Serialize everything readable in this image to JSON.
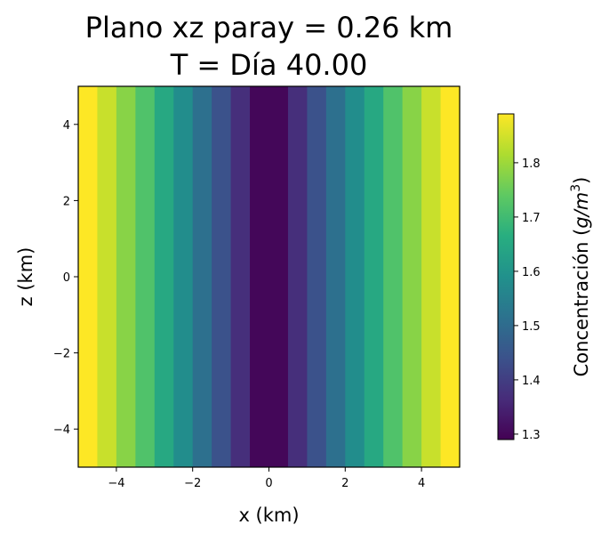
{
  "chart_data": {
    "type": "heatmap",
    "title_lines": [
      "Plano xz paray = 0.26 km",
      "T = Día 40.00"
    ],
    "xlabel": "x (km)",
    "ylabel": "z (km)",
    "xlim": [
      -5,
      5
    ],
    "ylim": [
      -5,
      5
    ],
    "xticks": [
      -4,
      -2,
      0,
      2,
      4
    ],
    "yticks": [
      -4,
      -2,
      0,
      2,
      4
    ],
    "xtick_labels": [
      "−4",
      "−2",
      "0",
      "2",
      "4"
    ],
    "ytick_labels": [
      "−4",
      "−2",
      "0",
      "2",
      "4"
    ],
    "x_bin_edges": [
      -5.0,
      -4.5,
      -4.0,
      -3.5,
      -3.0,
      -2.5,
      -2.0,
      -1.5,
      -1.0,
      -0.5,
      0.5,
      1.0,
      1.5,
      2.0,
      2.5,
      3.0,
      3.5,
      4.0,
      4.5,
      5.0
    ],
    "values": [
      1.89,
      1.84,
      1.78,
      1.72,
      1.65,
      1.58,
      1.51,
      1.44,
      1.37,
      1.3,
      1.37,
      1.44,
      1.51,
      1.58,
      1.65,
      1.72,
      1.78,
      1.84,
      1.89
    ],
    "colormap": "viridis",
    "colorbar": {
      "label": "Concentración (g/m³)",
      "label_prefix": "Concentración (",
      "label_units": "g/m",
      "label_exponent": "3",
      "label_suffix": ")",
      "vmin": 1.29,
      "vmax": 1.89,
      "ticks": [
        1.3,
        1.4,
        1.5,
        1.6,
        1.7,
        1.8
      ],
      "tick_labels": [
        "1.3",
        "1.4",
        "1.5",
        "1.6",
        "1.7",
        "1.8"
      ]
    },
    "grid": false
  }
}
